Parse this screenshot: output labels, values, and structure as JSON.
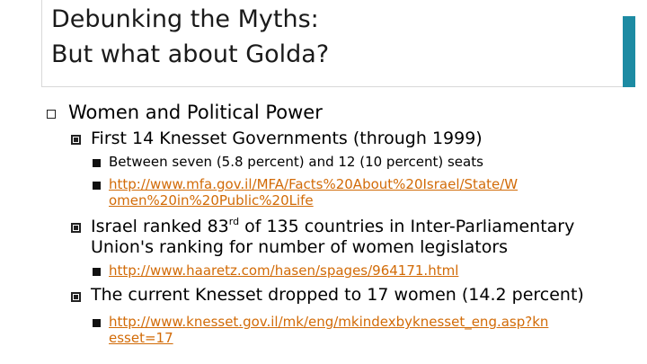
{
  "slide": {
    "title_line1": "Debunking the Myths:",
    "title_line2": "But what about Golda?",
    "accent_color": "#1d8ba3",
    "link_color": "#d26b07"
  },
  "content": {
    "l1_text": "Women and Political Power",
    "item1": {
      "text": "First 14 Knesset Governments (through 1999)",
      "sub1": "Between seven (5.8 percent) and 12 (10 percent) seats",
      "sub2_line1": "http://www.mfa.gov.il/MFA/Facts%20About%20Israel/State/W",
      "sub2_line2": "omen%20in%20Public%20Life"
    },
    "item2": {
      "pre": "Israel ranked 83",
      "sup": "rd",
      "post": " of 135 countries in Inter-Parliamentary",
      "line2": "Union's ranking for number of women legislators",
      "sub1": "http://www.haaretz.com/hasen/spages/964171.html"
    },
    "item3": {
      "text": "The current Knesset dropped to 17 women (14.2 percent)",
      "sub1_line1": "http://www.knesset.gov.il/mk/eng/mkindexbyknesset_eng.asp?kn",
      "sub1_line2": "esset=17"
    }
  }
}
